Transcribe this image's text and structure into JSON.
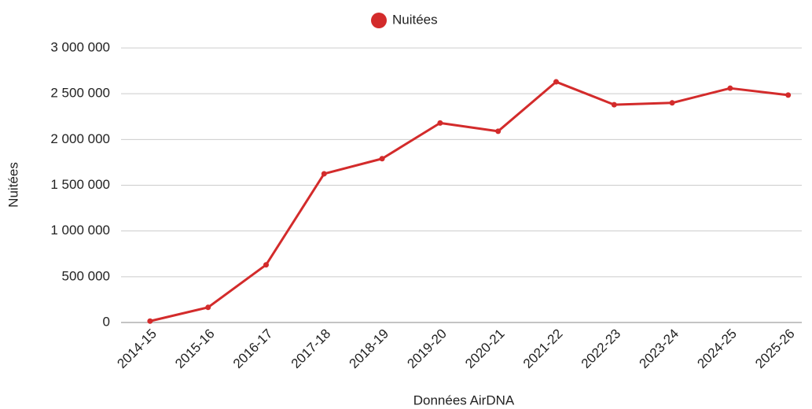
{
  "chart_data": {
    "type": "line",
    "x_label": "Données AirDNA",
    "y_label": "Nuitées",
    "categories": [
      "2014-15",
      "2015-16",
      "2016-17",
      "2017-18",
      "2018-19",
      "2019-20",
      "2020-21",
      "2021-22",
      "2022-23",
      "2023-24",
      "2024-25",
      "2025-26"
    ],
    "series": [
      {
        "name": "Nuitées",
        "color": "#d32b2b",
        "values": [
          15000,
          165000,
          630000,
          1625000,
          1790000,
          2180000,
          2090000,
          2630000,
          2380000,
          2400000,
          2560000,
          2485000
        ]
      }
    ],
    "ylim": [
      0,
      3000000
    ],
    "yticks": [
      0,
      {
        "value": 500000,
        "label": "500 000"
      },
      {
        "value": 1000000,
        "label": "1 000 000"
      },
      {
        "value": 1500000,
        "label": "1 500 000"
      },
      {
        "value": 2000000,
        "label": "2 000 000"
      },
      {
        "value": 2500000,
        "label": "2 500 000"
      },
      {
        "value": 3000000,
        "label": "3 000 000"
      }
    ],
    "grid": true,
    "legend": "top"
  }
}
